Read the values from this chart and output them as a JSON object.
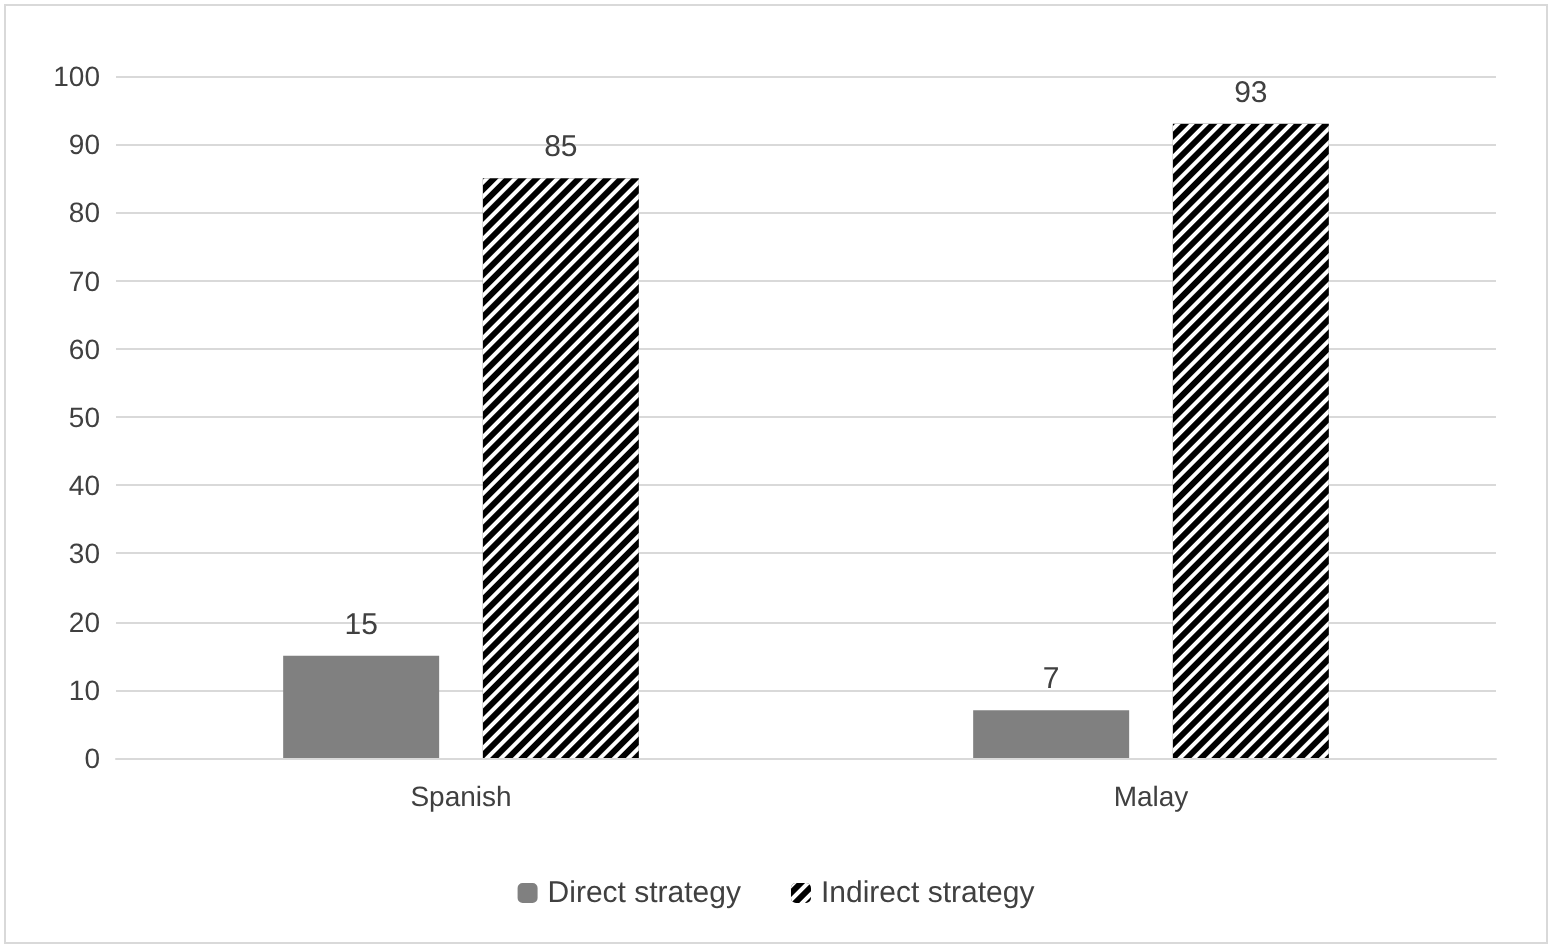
{
  "chart_data": {
    "type": "bar",
    "categories": [
      "Spanish",
      "Malay"
    ],
    "series": [
      {
        "name": "Direct strategy",
        "color": "#808080",
        "values": [
          15,
          7
        ]
      },
      {
        "name": "Indirect strategy",
        "color": "#000000",
        "values": [
          85,
          93
        ]
      }
    ],
    "ylim": [
      0,
      100
    ],
    "yticks": [
      0,
      10,
      20,
      30,
      40,
      50,
      60,
      70,
      80,
      90,
      100
    ],
    "grid": "y",
    "legend": "bottom",
    "data_labels": true
  }
}
